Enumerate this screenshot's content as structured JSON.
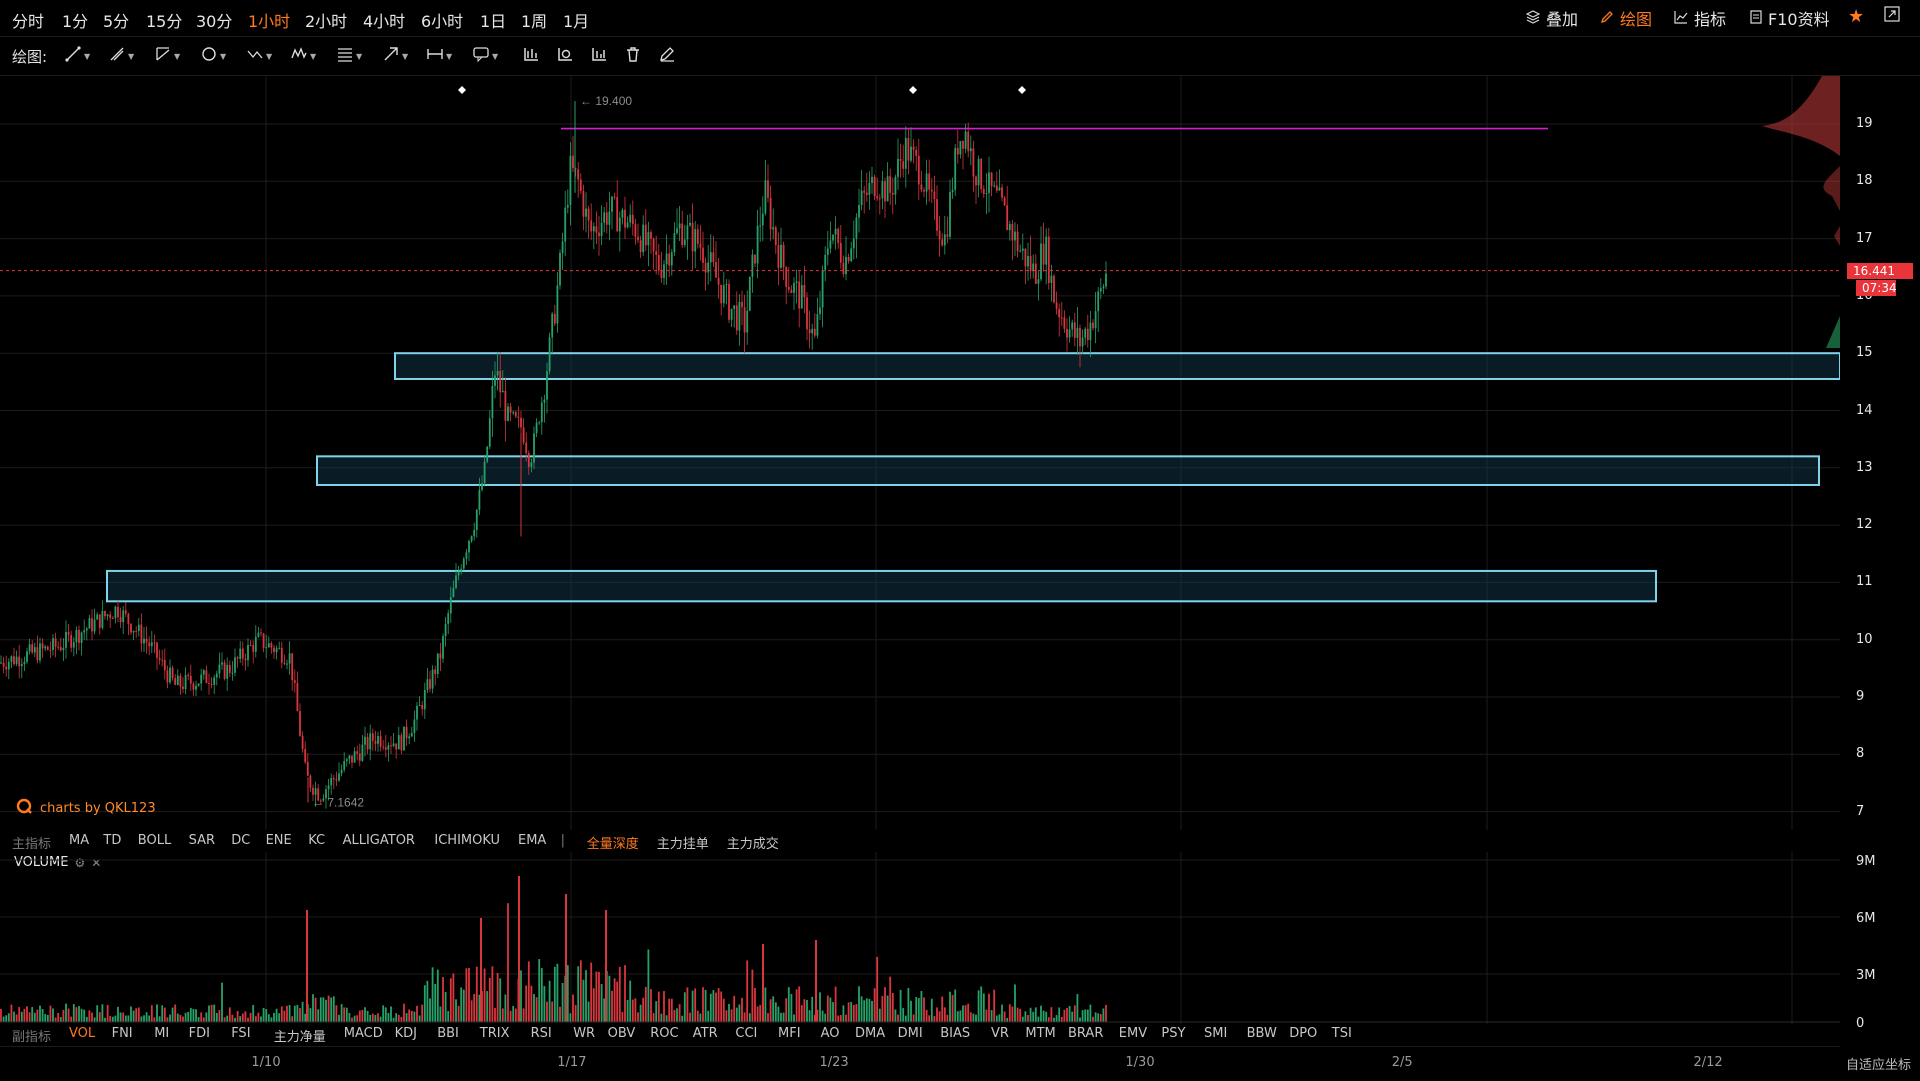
{
  "timeframes": [
    "分时",
    "1分",
    "5分",
    "15分",
    "30分",
    "1小时",
    "2小时",
    "4小时",
    "6小时",
    "1日",
    "1周",
    "1月"
  ],
  "active_timeframe": "1小时",
  "toolbar_right": {
    "overlay": "叠加",
    "draw": "绘图",
    "indicators": "指标",
    "f10": "F10资料"
  },
  "draw_label": "绘图:",
  "price_axis": [
    "19",
    "18",
    "17",
    "16",
    "15",
    "14",
    "13",
    "12",
    "11",
    "10",
    "9",
    "8",
    "7"
  ],
  "volume_axis": [
    "9M",
    "6M",
    "3M",
    "0"
  ],
  "date_axis": [
    "1/10",
    "1/17",
    "1/23",
    "1/30",
    "2/5",
    "2/12"
  ],
  "current_price": "16.441",
  "countdown": "07:34",
  "high_marker": "19.400",
  "low_marker": "7.1642",
  "brand_text": "charts by QKL123",
  "volume_label": "VOLUME",
  "main_indicators_label": "主指标",
  "main_indicators": [
    "MA",
    "TD",
    "BOLL",
    "SAR",
    "DC",
    "ENE",
    "KC",
    "ALLIGATOR",
    "ICHIMOKU",
    "EMA"
  ],
  "main_indicators_extra": [
    "全量深度",
    "主力挂单",
    "主力成交"
  ],
  "sub_indicators_label": "副指标",
  "sub_indicators": [
    "VOL",
    "FNI",
    "MI",
    "FDI",
    "FSI",
    "主力净量",
    "MACD",
    "KDJ",
    "BBI",
    "TRIX",
    "RSI",
    "WR",
    "OBV",
    "ROC",
    "ATR",
    "CCI",
    "MFI",
    "AO",
    "DMA",
    "DMI",
    "BIAS",
    "VR",
    "MTM",
    "BRAR",
    "EMV",
    "PSY",
    "SMI",
    "BBW",
    "DPO",
    "TSI"
  ],
  "auto_scale": "自适应坐标",
  "colors": {
    "accent": "#ff7a1f",
    "up": "#26a269",
    "down": "#d9363e",
    "zone": "#7fd3ea",
    "resistance": "#d020d0"
  }
}
